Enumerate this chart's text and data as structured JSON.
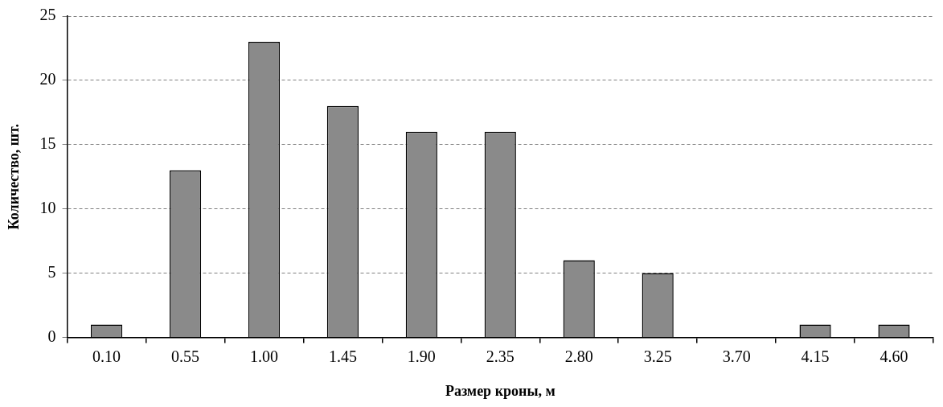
{
  "chart_data": {
    "type": "bar",
    "xlabel": "Размер кроны, м",
    "ylabel": "Количество, шт.",
    "categories": [
      "0.10",
      "0.55",
      "1.00",
      "1.45",
      "1.90",
      "2.35",
      "2.80",
      "3.25",
      "3.70",
      "4.15",
      "4.60"
    ],
    "values": [
      1,
      13,
      23,
      18,
      16,
      16,
      6,
      5,
      0,
      1,
      1
    ],
    "color": "#8a8a8a",
    "ylim": [
      0,
      25
    ],
    "yticks": [
      0,
      5,
      10,
      15,
      20,
      25
    ],
    "grid": "y",
    "legend": false
  }
}
